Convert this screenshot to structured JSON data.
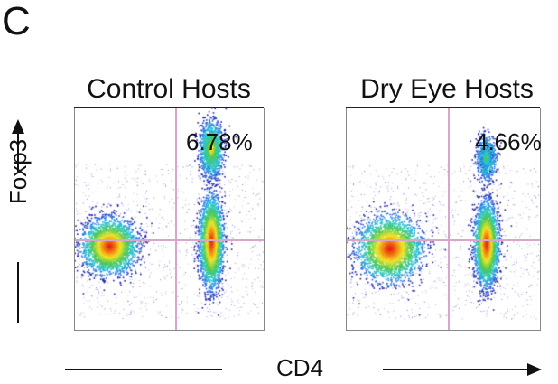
{
  "panel_letter": "C",
  "colors": {
    "gate": "#d8a6c8",
    "axis": "#222222",
    "density_low": "#1a1aa8",
    "density_high": "#e81010"
  },
  "chart_data": [
    {
      "type": "scatter",
      "subtype": "flow-cytometry-density",
      "title": "Control Hosts",
      "xlabel": "CD4",
      "ylabel": "Foxp3",
      "quadrant_percent": "6.78%",
      "populations": [
        {
          "x": 0.18,
          "y": 0.62,
          "spread_x": 0.07,
          "spread_y": 0.06,
          "density": "high"
        },
        {
          "x": 0.72,
          "y": 0.6,
          "spread_x": 0.03,
          "spread_y": 0.1,
          "density": "high"
        },
        {
          "x": 0.72,
          "y": 0.18,
          "spread_x": 0.03,
          "spread_y": 0.06,
          "density": "medium"
        }
      ]
    },
    {
      "type": "scatter",
      "subtype": "flow-cytometry-density",
      "title": "Dry Eye Hosts",
      "xlabel": "CD4",
      "ylabel": "Foxp3",
      "quadrant_percent": "4.66%",
      "populations": [
        {
          "x": 0.22,
          "y": 0.63,
          "spread_x": 0.08,
          "spread_y": 0.07,
          "density": "high"
        },
        {
          "x": 0.72,
          "y": 0.61,
          "spread_x": 0.03,
          "spread_y": 0.09,
          "density": "high"
        },
        {
          "x": 0.72,
          "y": 0.22,
          "spread_x": 0.025,
          "spread_y": 0.05,
          "density": "low"
        }
      ]
    }
  ]
}
